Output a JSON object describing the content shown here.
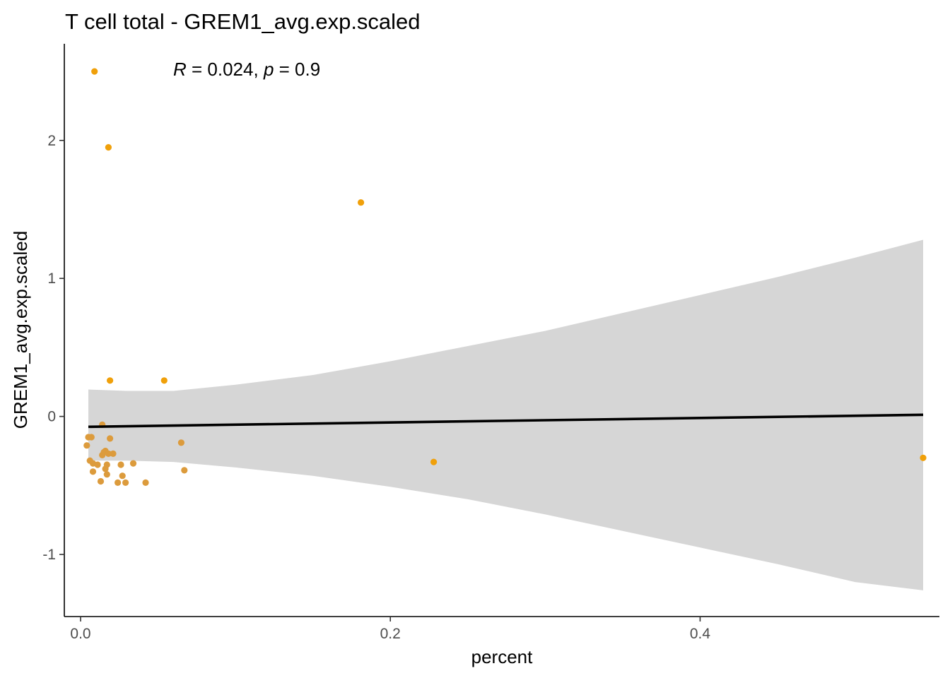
{
  "chart_data": {
    "type": "scatter",
    "title": "T cell total - GREM1_avg.exp.scaled",
    "xlabel": "percent",
    "ylabel": "GREM1_avg.exp.scaled",
    "xlim": [
      -0.0105,
      0.5545
    ],
    "ylim": [
      -1.45,
      2.7
    ],
    "xticks": [
      0.0,
      0.2,
      0.4
    ],
    "xtick_labels": [
      "0.0",
      "0.2",
      "0.4"
    ],
    "yticks": [
      -1,
      0,
      1,
      2
    ],
    "ytick_labels": [
      "-1",
      "0",
      "1",
      "2"
    ],
    "grid": false,
    "annotation": {
      "r_label": "R",
      "r_value": " = 0.024, ",
      "p_label": "p",
      "p_value": " = 0.9"
    },
    "colors": {
      "point": "#f0a00a",
      "point_alt": "#dc9b3c",
      "fit_line": "#000000",
      "confidence_band": "#d6d6d6"
    },
    "points": [
      {
        "x": 0.009,
        "y": 2.5
      },
      {
        "x": 0.018,
        "y": 1.95
      },
      {
        "x": 0.181,
        "y": 1.55
      },
      {
        "x": 0.019,
        "y": 0.26
      },
      {
        "x": 0.054,
        "y": 0.26
      },
      {
        "x": 0.014,
        "y": -0.06
      },
      {
        "x": 0.005,
        "y": -0.15
      },
      {
        "x": 0.007,
        "y": -0.15
      },
      {
        "x": 0.019,
        "y": -0.16
      },
      {
        "x": 0.065,
        "y": -0.19
      },
      {
        "x": 0.004,
        "y": -0.21
      },
      {
        "x": 0.016,
        "y": -0.25
      },
      {
        "x": 0.015,
        "y": -0.26
      },
      {
        "x": 0.018,
        "y": -0.27
      },
      {
        "x": 0.021,
        "y": -0.27
      },
      {
        "x": 0.014,
        "y": -0.28
      },
      {
        "x": 0.006,
        "y": -0.32
      },
      {
        "x": 0.544,
        "y": -0.3
      },
      {
        "x": 0.228,
        "y": -0.33
      },
      {
        "x": 0.034,
        "y": -0.34
      },
      {
        "x": 0.008,
        "y": -0.34
      },
      {
        "x": 0.011,
        "y": -0.35
      },
      {
        "x": 0.017,
        "y": -0.35
      },
      {
        "x": 0.026,
        "y": -0.35
      },
      {
        "x": 0.016,
        "y": -0.38
      },
      {
        "x": 0.067,
        "y": -0.39
      },
      {
        "x": 0.008,
        "y": -0.4
      },
      {
        "x": 0.017,
        "y": -0.42
      },
      {
        "x": 0.027,
        "y": -0.43
      },
      {
        "x": 0.013,
        "y": -0.47
      },
      {
        "x": 0.024,
        "y": -0.48
      },
      {
        "x": 0.029,
        "y": -0.48
      },
      {
        "x": 0.042,
        "y": -0.48
      }
    ],
    "fit_line": {
      "x": [
        0.005,
        0.544
      ],
      "y": [
        -0.075,
        0.012
      ]
    },
    "confidence_band": {
      "x": [
        0.005,
        0.03,
        0.06,
        0.1,
        0.15,
        0.2,
        0.25,
        0.3,
        0.35,
        0.4,
        0.45,
        0.5,
        0.544
      ],
      "upper": [
        0.195,
        0.185,
        0.185,
        0.23,
        0.3,
        0.4,
        0.51,
        0.62,
        0.75,
        0.88,
        1.01,
        1.15,
        1.28
      ],
      "lower": [
        -0.32,
        -0.32,
        -0.33,
        -0.37,
        -0.43,
        -0.51,
        -0.6,
        -0.71,
        -0.83,
        -0.95,
        -1.07,
        -1.2,
        -1.26
      ]
    }
  }
}
